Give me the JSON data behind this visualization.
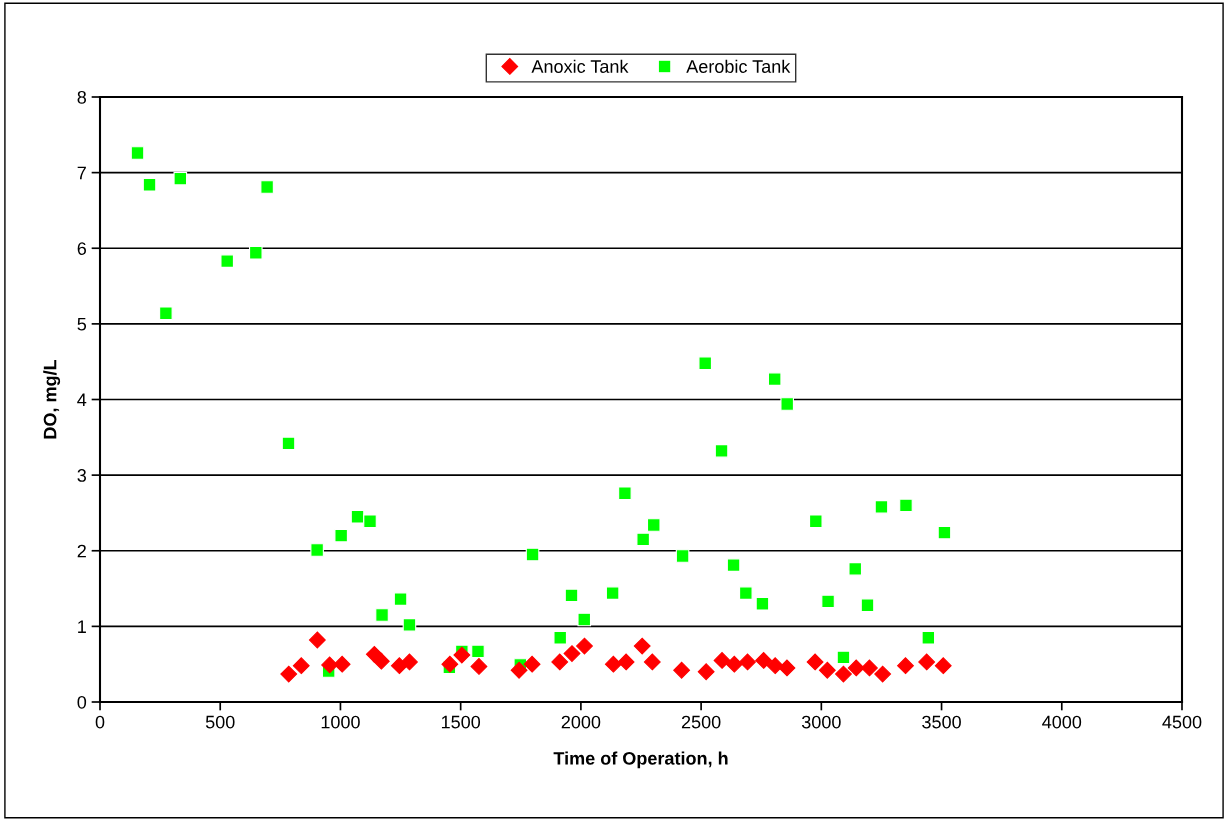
{
  "chart_data": {
    "type": "scatter",
    "xlabel": "Time of Operation, h",
    "ylabel": "DO, mg/L",
    "xlim": [
      0,
      4500
    ],
    "xticks": [
      0,
      500,
      1000,
      1500,
      2000,
      2500,
      3000,
      3500,
      4000,
      4500
    ],
    "ylim": [
      0,
      8
    ],
    "yticks": [
      0,
      1,
      2,
      3,
      4,
      5,
      6,
      7,
      8
    ],
    "grid": "y",
    "legend": "top",
    "series": [
      {
        "name": "Anoxic Tank",
        "color": "#ff0000",
        "marker": "diamond",
        "x": [
          785,
          837,
          904,
          955,
          1007,
          1141,
          1170,
          1245,
          1287,
          1455,
          1505,
          1576,
          1743,
          1797,
          1912,
          1963,
          2015,
          2135,
          2188,
          2255,
          2297,
          2419,
          2521,
          2587,
          2638,
          2693,
          2760,
          2808,
          2857,
          2974,
          3025,
          3092,
          3145,
          3200,
          3255,
          3350,
          3438,
          3507
        ],
        "values": [
          0.37,
          0.48,
          0.82,
          0.49,
          0.5,
          0.63,
          0.54,
          0.48,
          0.53,
          0.5,
          0.62,
          0.47,
          0.42,
          0.5,
          0.53,
          0.64,
          0.74,
          0.5,
          0.53,
          0.74,
          0.53,
          0.42,
          0.4,
          0.55,
          0.5,
          0.53,
          0.55,
          0.48,
          0.45,
          0.53,
          0.42,
          0.37,
          0.45,
          0.45,
          0.37,
          0.48,
          0.53,
          0.48
        ]
      },
      {
        "name": "Aerobic Tank",
        "color": "#00ff00",
        "marker": "square",
        "x": [
          156,
          206,
          274,
          334,
          529,
          648,
          695,
          784,
          903,
          951,
          1003,
          1071,
          1123,
          1173,
          1250,
          1287,
          1453,
          1505,
          1572,
          1748,
          1799,
          1914,
          1961,
          2014,
          2132,
          2183,
          2259,
          2303,
          2423,
          2517,
          2585,
          2635,
          2686,
          2755,
          2806,
          2858,
          2977,
          3028,
          3092,
          3141,
          3192,
          3250,
          3352,
          3445,
          3512
        ],
        "values": [
          7.26,
          6.84,
          5.14,
          6.92,
          5.83,
          5.94,
          6.81,
          3.42,
          2.01,
          0.41,
          2.2,
          2.45,
          2.39,
          1.15,
          1.36,
          1.02,
          0.46,
          0.67,
          0.67,
          0.49,
          1.95,
          0.85,
          1.41,
          1.09,
          1.44,
          2.76,
          2.15,
          2.34,
          1.93,
          4.48,
          3.32,
          1.81,
          1.44,
          1.3,
          4.27,
          3.94,
          2.39,
          1.33,
          0.59,
          1.76,
          1.28,
          2.58,
          2.6,
          0.85,
          2.24
        ]
      }
    ]
  }
}
